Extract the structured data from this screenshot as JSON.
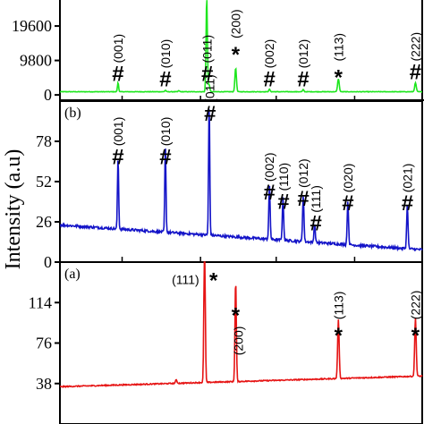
{
  "chart_data": {
    "type": "line",
    "ylabel": "Intensity (a.u)",
    "panels": [
      {
        "id": "c",
        "tag": "",
        "color": "#1ee61e",
        "ylim": [
          -1500,
          27000
        ],
        "yticks": [
          0,
          9800,
          19600
        ],
        "ytick_labels": [
          "0",
          "9800",
          "19600"
        ],
        "baseline": 900,
        "noise": 70,
        "peaks": [
          {
            "x": 0.215,
            "h": 2600,
            "w": 0.0022
          },
          {
            "x": 0.39,
            "h": 400,
            "w": 0.0025
          },
          {
            "x": 0.44,
            "h": 300,
            "w": 0.0025
          },
          {
            "x": 0.543,
            "h": 27000,
            "w": 0.0025
          },
          {
            "x": 0.552,
            "h": 2000,
            "w": 0.0025
          },
          {
            "x": 0.65,
            "h": 6800,
            "w": 0.0028
          },
          {
            "x": 0.775,
            "h": 700,
            "w": 0.0025
          },
          {
            "x": 0.9,
            "h": 600,
            "w": 0.0025
          },
          {
            "x": 1.03,
            "h": 3700,
            "w": 0.003
          },
          {
            "x": 1.315,
            "h": 2500,
            "w": 0.003
          }
        ],
        "annotations": [
          {
            "x": 0.215,
            "y": 6000,
            "symbol": "#",
            "label": "(001)"
          },
          {
            "x": 0.39,
            "y": 4500,
            "symbol": "#",
            "label": "(010)"
          },
          {
            "x": 0.545,
            "y": 6000,
            "symbol": "#",
            "label": "(011)"
          },
          {
            "x": 0.65,
            "y": 13000,
            "symbol": "*",
            "label": "(200)"
          },
          {
            "x": 0.775,
            "y": 4500,
            "symbol": "#",
            "label": "(002)"
          },
          {
            "x": 0.9,
            "y": 4500,
            "symbol": "#",
            "label": "(012)"
          },
          {
            "x": 1.03,
            "y": 6500,
            "symbol": "*",
            "label": "(113)"
          },
          {
            "x": 1.315,
            "y": 6500,
            "symbol": "#",
            "label": "(222)"
          }
        ]
      },
      {
        "id": "b",
        "tag": "(b)",
        "color": "#1414c8",
        "ylim": [
          0,
          104
        ],
        "yticks": [
          0,
          26,
          52,
          78
        ],
        "ytick_labels": [
          "0",
          "26",
          "52",
          "78"
        ],
        "baseline_start": 24,
        "baseline_end": 8,
        "noise": 0.8,
        "peaks": [
          {
            "x": 0.215,
            "h": 46,
            "w": 0.0022
          },
          {
            "x": 0.39,
            "h": 55,
            "w": 0.0022
          },
          {
            "x": 0.552,
            "h": 85,
            "w": 0.0022
          },
          {
            "x": 0.775,
            "h": 34,
            "w": 0.0025
          },
          {
            "x": 0.825,
            "h": 27,
            "w": 0.0025
          },
          {
            "x": 0.9,
            "h": 30,
            "w": 0.0025
          },
          {
            "x": 0.942,
            "h": 12,
            "w": 0.0025
          },
          {
            "x": 1.065,
            "h": 28,
            "w": 0.0025
          },
          {
            "x": 1.285,
            "h": 28,
            "w": 0.0025
          }
        ],
        "annotations": [
          {
            "x": 0.215,
            "y": 68,
            "symbol": "#",
            "label": "(001)"
          },
          {
            "x": 0.39,
            "y": 68,
            "symbol": "#",
            "label": "(010)"
          },
          {
            "x": 0.555,
            "y": 96,
            "symbol": "#",
            "label": "(011)"
          },
          {
            "x": 0.775,
            "y": 45,
            "symbol": "#",
            "label": "(002)"
          },
          {
            "x": 0.827,
            "y": 39,
            "symbol": "#",
            "label": "(110)"
          },
          {
            "x": 0.9,
            "y": 41,
            "symbol": "#",
            "label": "(012)"
          },
          {
            "x": 0.947,
            "y": 25,
            "symbol": "#",
            "label": "(111)"
          },
          {
            "x": 1.065,
            "y": 38,
            "symbol": "#",
            "label": "(020)"
          },
          {
            "x": 1.285,
            "y": 38,
            "symbol": "#",
            "label": "(021)"
          }
        ]
      },
      {
        "id": "a",
        "tag": "(a)",
        "color": "#e61414",
        "ylim": [
          0,
          152
        ],
        "yticks": [
          38,
          76,
          114
        ],
        "ytick_labels": [
          "38",
          "76",
          "114"
        ],
        "baseline_start": 35,
        "baseline_end": 45,
        "noise": 0.5,
        "peaks": [
          {
            "x": 0.535,
            "h": 140,
            "w": 0.0025
          },
          {
            "x": 0.65,
            "h": 95,
            "w": 0.0025
          },
          {
            "x": 1.03,
            "h": 55,
            "w": 0.0028
          },
          {
            "x": 1.315,
            "h": 55,
            "w": 0.0028
          },
          {
            "x": 0.43,
            "h": 3,
            "w": 0.003
          }
        ],
        "annotations": [
          {
            "x": 0.535,
            "y": 140,
            "symbol": "*",
            "label": "(111)",
            "label_pos": "left"
          },
          {
            "x": 0.65,
            "y": 107,
            "symbol": "*",
            "label": "(200)",
            "label_pos": "right"
          },
          {
            "x": 1.03,
            "y": 88,
            "symbol": "*",
            "label": "(113)"
          },
          {
            "x": 1.315,
            "y": 88,
            "symbol": "*",
            "label": "(222)"
          }
        ]
      }
    ]
  }
}
